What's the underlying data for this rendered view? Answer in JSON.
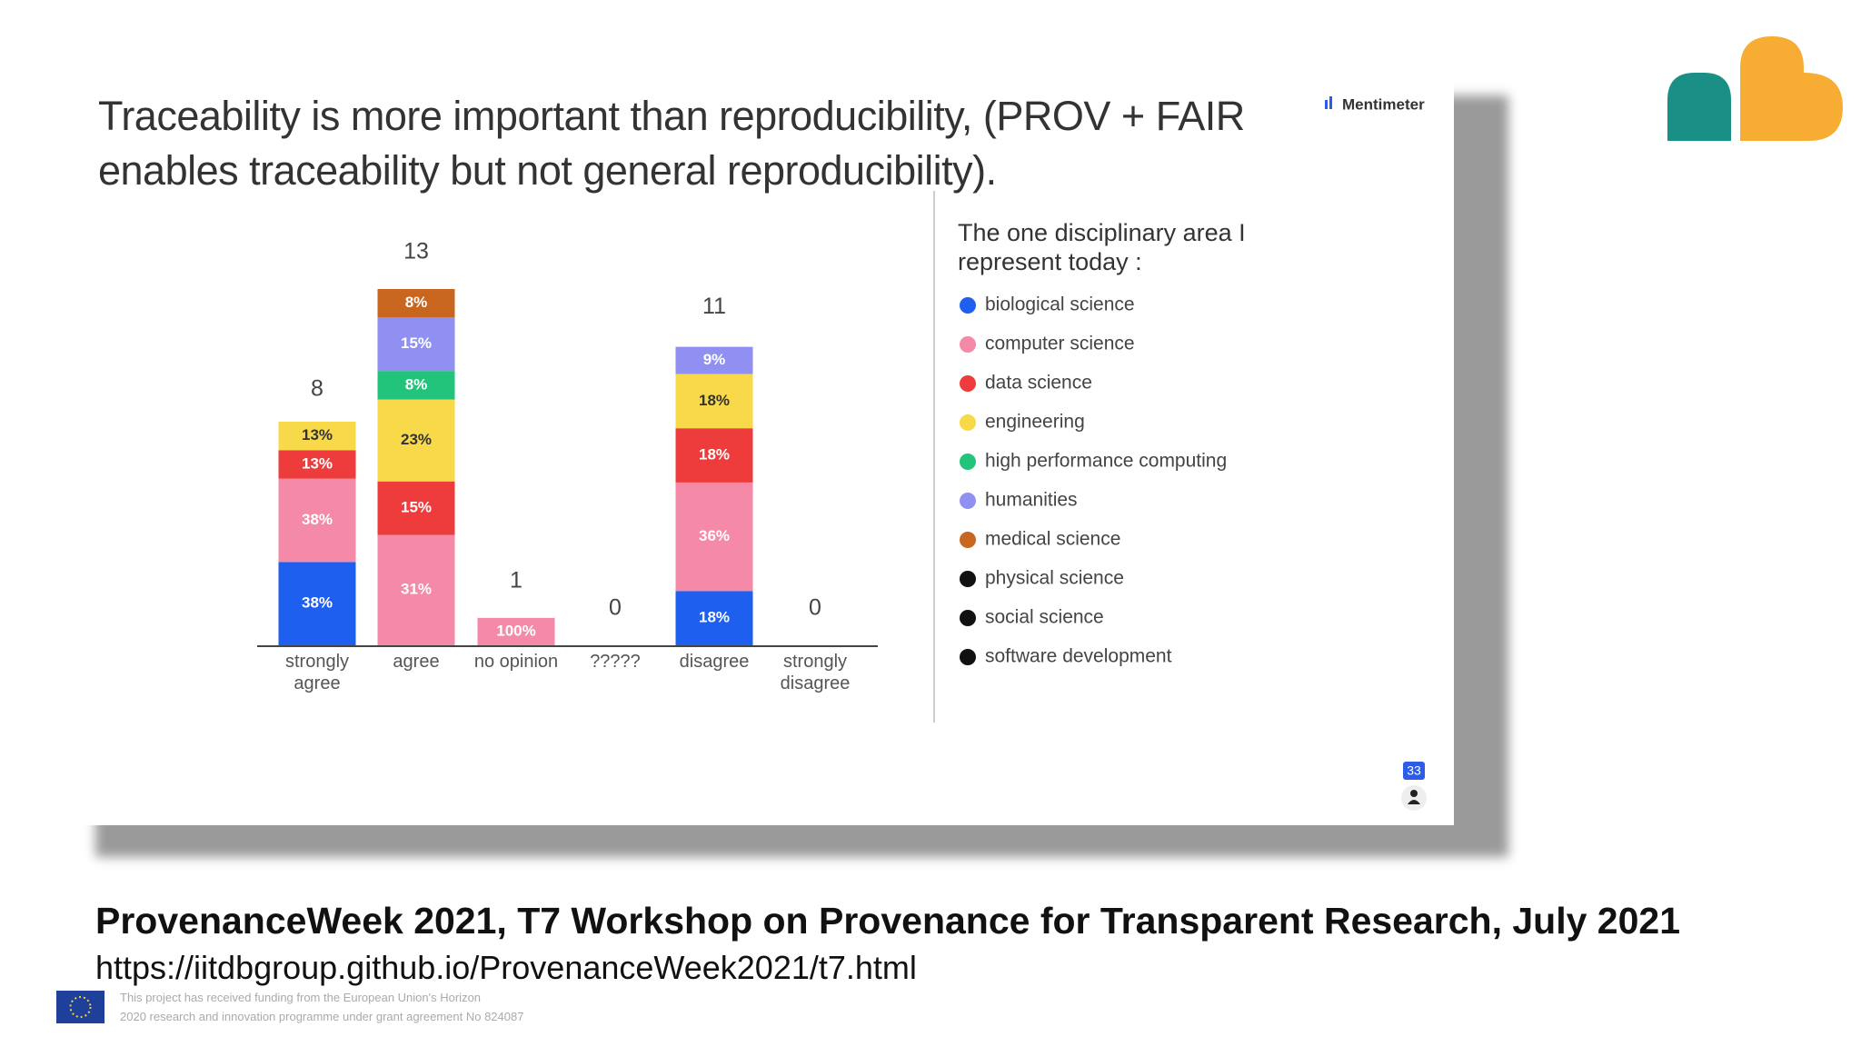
{
  "chart_data": {
    "type": "stacked_bar",
    "title": "Traceability is more important than reproducibility, (PROV + FAIR enables traceability but not general reproducibility).",
    "categories": [
      "strongly agree",
      "agree",
      "no opinion",
      "?????",
      "disagree",
      "strongly disagree"
    ],
    "totals": [
      8,
      13,
      1,
      0,
      11,
      0
    ],
    "legend_title": "The one disciplinary area I represent today :",
    "series": [
      {
        "name": "biological science",
        "color": "#1f5ff0",
        "values": [
          38,
          null,
          null,
          null,
          18,
          null
        ],
        "value_labels": [
          "38%",
          null,
          null,
          null,
          "18%",
          null
        ]
      },
      {
        "name": "computer science",
        "color": "#f48aa8",
        "values": [
          38,
          31,
          100,
          null,
          36,
          null
        ],
        "value_labels": [
          "38%",
          "31%",
          "100%",
          null,
          "36%",
          null
        ]
      },
      {
        "name": "data science",
        "color": "#ee3b3b",
        "values": [
          13,
          15,
          null,
          null,
          18,
          null
        ],
        "value_labels": [
          "13%",
          "15%",
          null,
          null,
          "18%",
          null
        ]
      },
      {
        "name": "engineering",
        "color": "#f8d94a",
        "values": [
          13,
          23,
          null,
          null,
          18,
          null
        ],
        "value_labels": [
          "13%",
          "23%",
          null,
          null,
          "18%",
          null
        ]
      },
      {
        "name": "high performance computing",
        "color": "#21c47a",
        "values": [
          null,
          8,
          null,
          null,
          null,
          null
        ],
        "value_labels": [
          null,
          "8%",
          null,
          null,
          null,
          null
        ]
      },
      {
        "name": "humanities",
        "color": "#8f90f2",
        "values": [
          null,
          15,
          null,
          null,
          9,
          null
        ],
        "value_labels": [
          null,
          "15%",
          null,
          null,
          "9%",
          null
        ]
      },
      {
        "name": "medical science",
        "color": "#c8661f",
        "values": [
          null,
          8,
          null,
          null,
          null,
          null
        ],
        "value_labels": [
          null,
          "8%",
          null,
          null,
          null,
          null
        ]
      },
      {
        "name": "physical science",
        "color": "#111111",
        "values": [
          null,
          null,
          null,
          null,
          null,
          null
        ]
      },
      {
        "name": "social science",
        "color": "#111111",
        "values": [
          null,
          null,
          null,
          null,
          null,
          null
        ]
      },
      {
        "name": "software development",
        "color": "#111111",
        "values": [
          null,
          null,
          null,
          null,
          null,
          null
        ]
      }
    ]
  },
  "page": {
    "brand": "Mentimeter",
    "participants": "33",
    "footer_title": "ProvenanceWeek 2021, T7 Workshop on Provenance for Transparent Research, July 2021",
    "footer_url": "https://iitdbgroup.github.io/ProvenanceWeek2021/t7.html",
    "funding": [
      "This project has received funding from the European Union's Horizon",
      "2020 research and innovation programme under grant agreement No 824087"
    ]
  }
}
